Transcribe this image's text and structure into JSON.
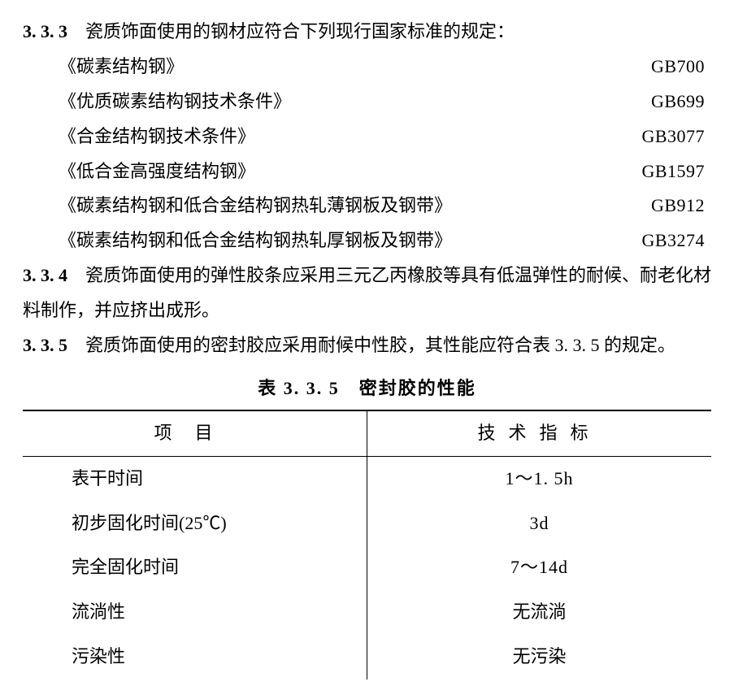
{
  "clause333": {
    "num": "3. 3. 3",
    "lead": "　瓷质饰面使用的钢材应符合下列现行国家标准的规定：",
    "standards": [
      {
        "title": "《碳素结构钢》",
        "code": "GB700"
      },
      {
        "title": "《优质碳素结构钢技术条件》",
        "code": "GB699"
      },
      {
        "title": "《合金结构钢技术条件》",
        "code": "GB3077"
      },
      {
        "title": "《低合金高强度结构钢》",
        "code": "GB1597"
      },
      {
        "title": "《碳素结构钢和低合金结构钢热轧薄钢板及钢带》",
        "code": "GB912"
      },
      {
        "title": "《碳素结构钢和低合金结构钢热轧厚钢板及钢带》",
        "code": "GB3274"
      }
    ]
  },
  "clause334": {
    "num": "3. 3. 4",
    "text": "　瓷质饰面使用的弹性胶条应采用三元乙丙橡胶等具有低温弹性的耐候、耐老化材料制作，并应挤出成形。"
  },
  "clause335": {
    "num": "3. 3. 5",
    "text": "　瓷质饰面使用的密封胶应采用耐候中性胶，其性能应符合表 3. 3. 5 的规定。"
  },
  "table335": {
    "caption": "表 3. 3. 5　密封胶的性能",
    "header": {
      "c1": "项目",
      "c2": "技术指标"
    },
    "rows": [
      {
        "item": "表干时间",
        "value": "1～1. 5h"
      },
      {
        "item": "初步固化时间(25℃)",
        "value": "3d"
      },
      {
        "item": "完全固化时间",
        "value": "7～14d"
      },
      {
        "item": "流淌性",
        "value": "无流淌"
      },
      {
        "item": "污染性",
        "value": "无污染"
      }
    ]
  }
}
